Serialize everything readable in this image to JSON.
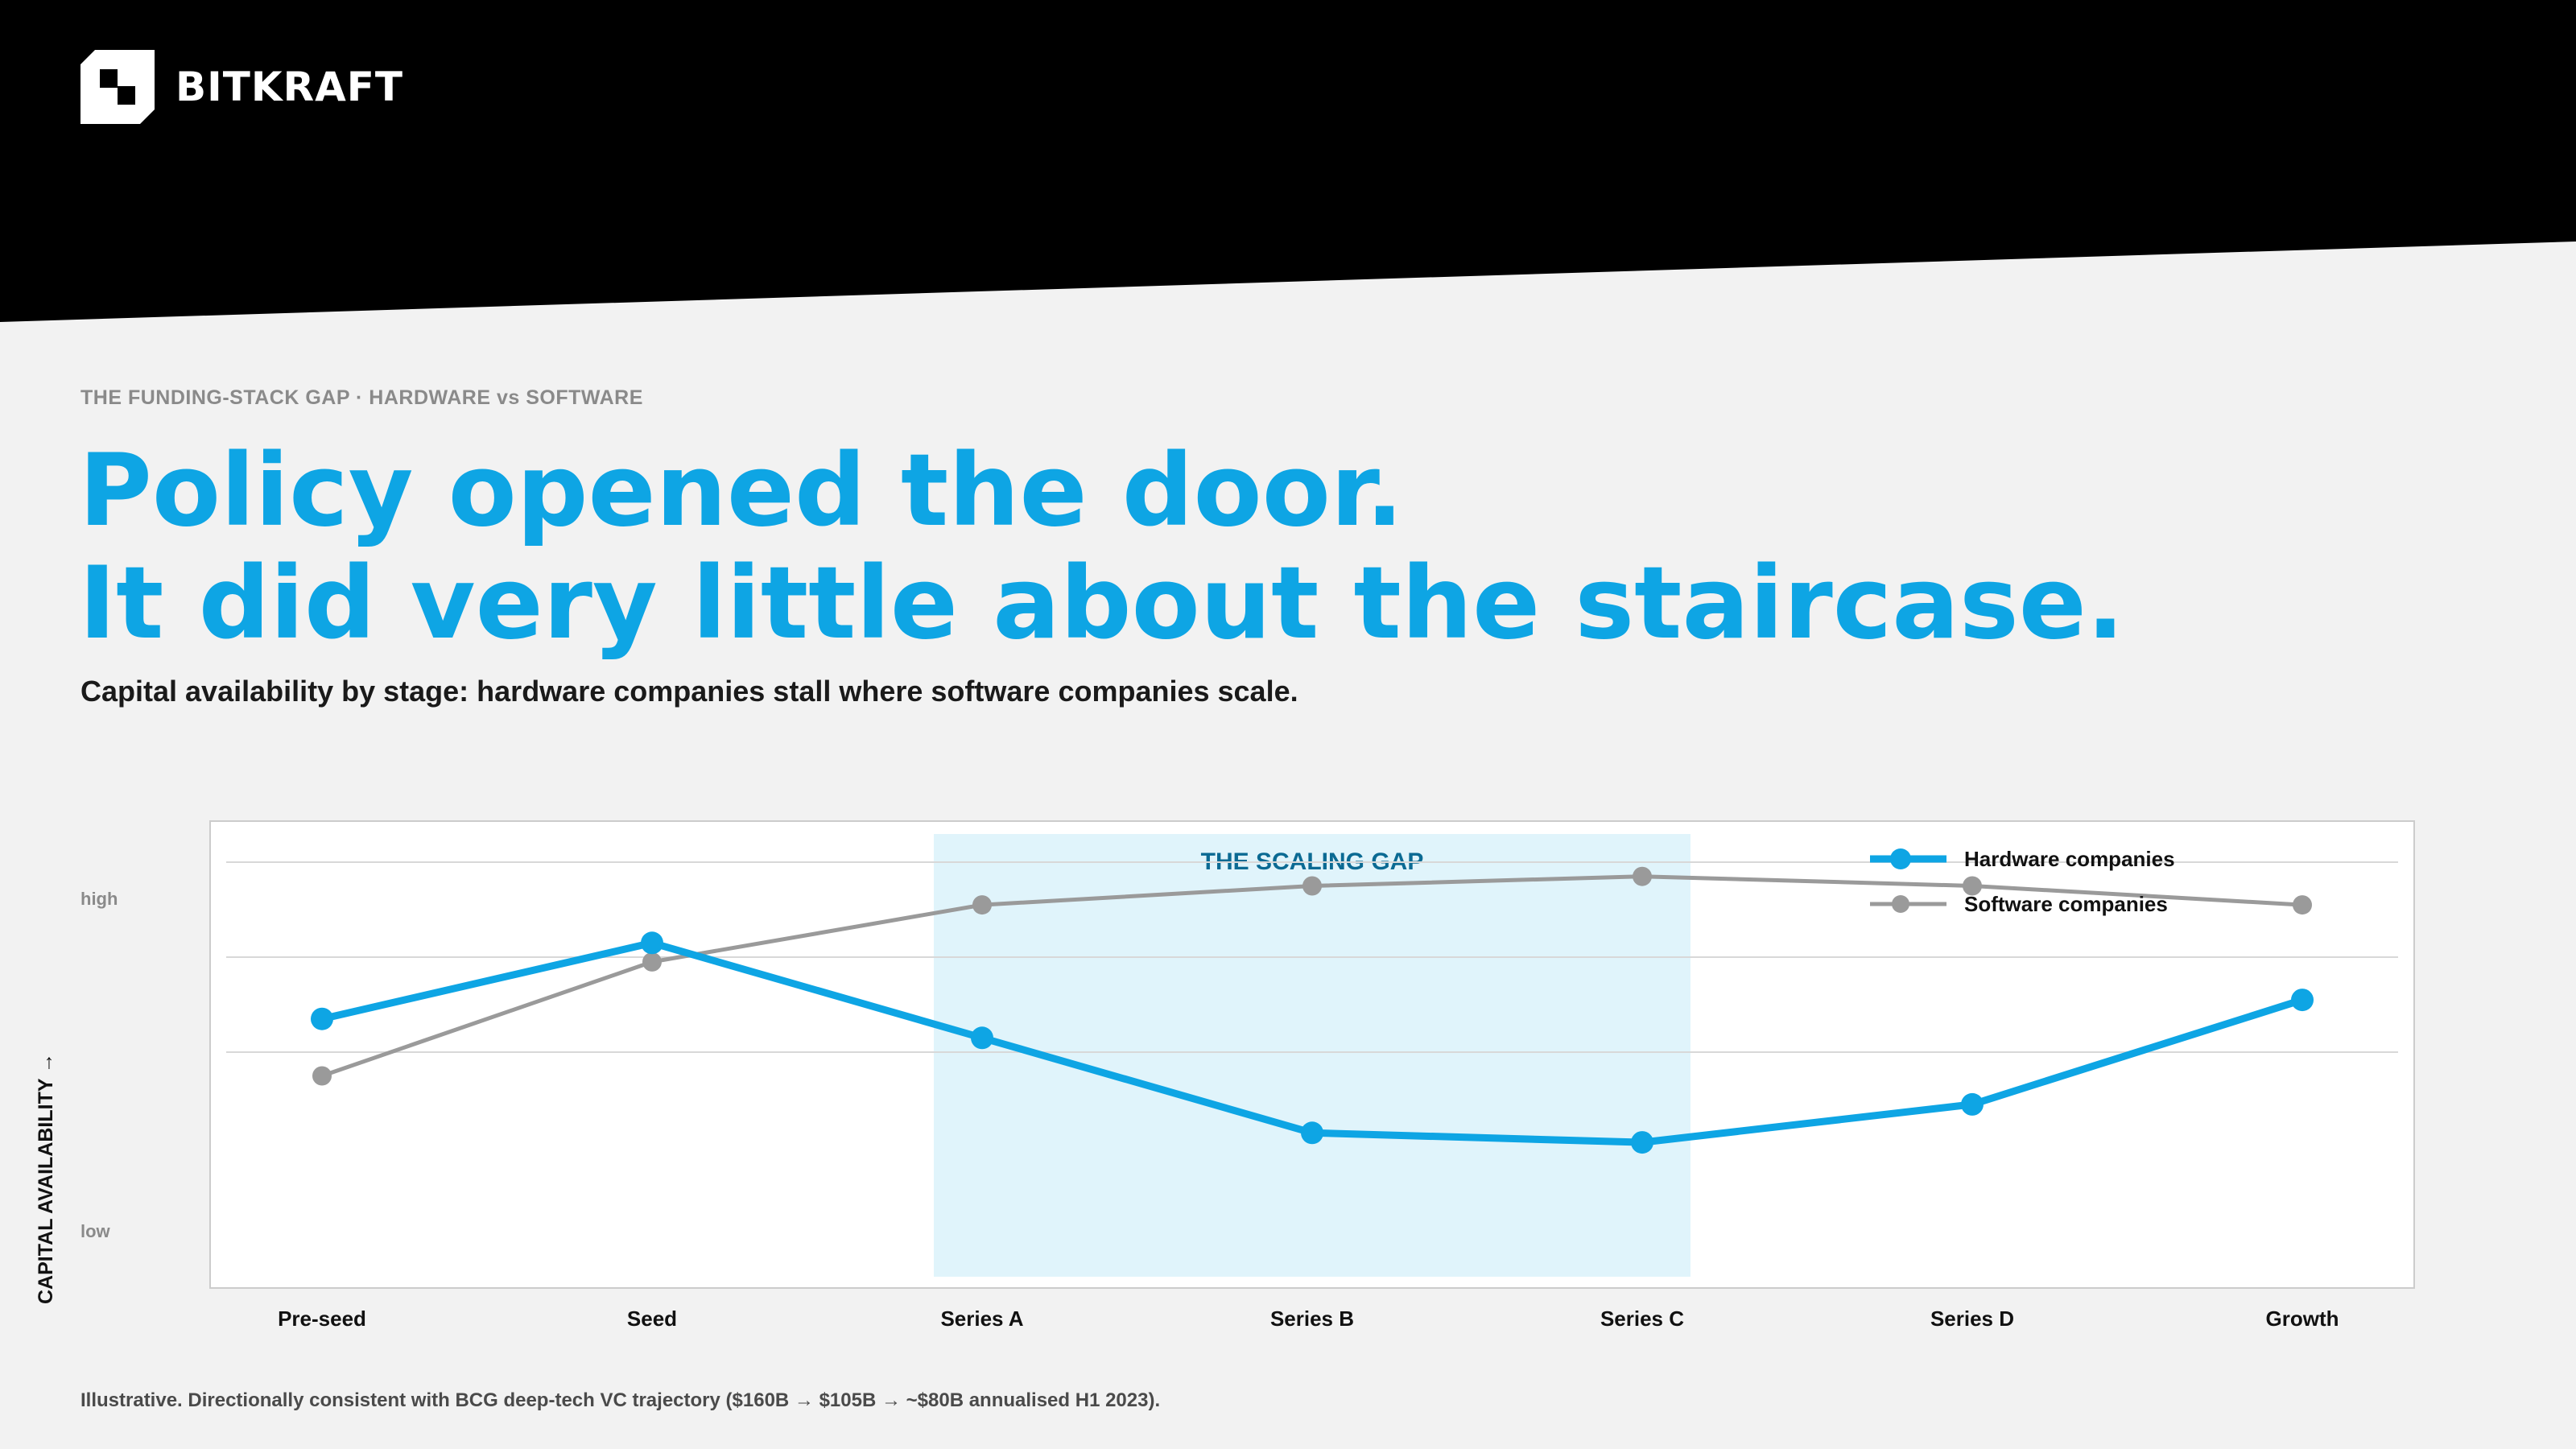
{
  "brand": {
    "name": "BITKRAFT"
  },
  "eyebrow": "THE FUNDING-STACK GAP  ·  HARDWARE vs SOFTWARE",
  "headline": {
    "line1": "Policy opened the door.",
    "line2": "It did very little about the staircase."
  },
  "subtitle": "Capital availability by stage: hardware companies stall where software companies scale.",
  "footnote": "Illustrative.  Directionally consistent with BCG deep-tech VC trajectory ($160B → $105B → ~$80B annualised H1 2023).",
  "colors": {
    "header_bg": "#000000",
    "page_bg": "#f2f2f2",
    "hardware": "#0ea5e4",
    "software": "#9a9a9a",
    "gap_band": "#e0f4fb",
    "gap_label": "#0b6a93"
  },
  "chart_data": {
    "type": "line",
    "categories": [
      "Pre-seed",
      "Seed",
      "Series A",
      "Series B",
      "Series C",
      "Series D",
      "Growth"
    ],
    "series": [
      {
        "name": "Hardware companies",
        "values": [
          5.7,
          7.3,
          5.3,
          3.3,
          3.1,
          3.9,
          6.1
        ]
      },
      {
        "name": "Software companies",
        "values": [
          4.5,
          6.9,
          8.1,
          8.5,
          8.7,
          8.5,
          8.1
        ]
      }
    ],
    "ylabel": "CAPITAL AVAILABILITY →",
    "y_tick_labels": {
      "high": "high",
      "low": "low"
    },
    "ylim": [
      0,
      10
    ],
    "y_gridlines": [
      5,
      7,
      9
    ],
    "highlight_band": {
      "label": "THE SCALING GAP",
      "from": "Series A",
      "to": "Series C"
    },
    "legend_position": "top-right"
  }
}
